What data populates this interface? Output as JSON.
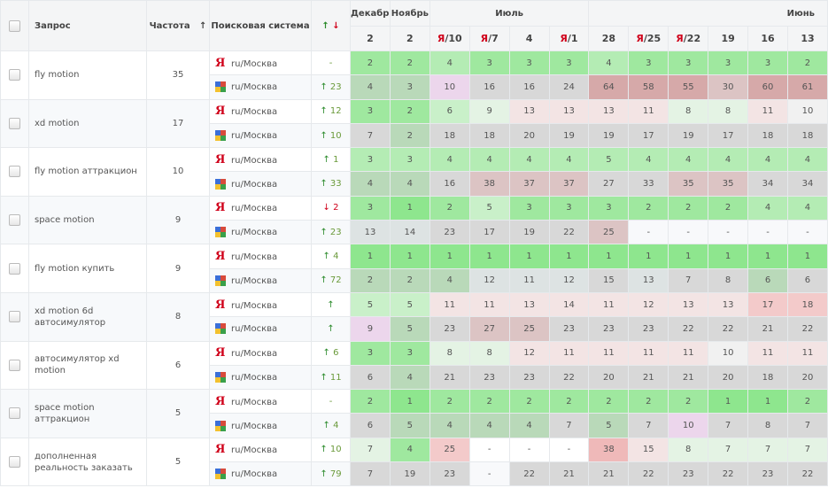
{
  "header": {
    "query": "Запрос",
    "frequency": "Частота",
    "sort_arrow": "↑",
    "engine": "Поисковая система",
    "delta_up": "↑",
    "delta_down": "↓",
    "months": [
      {
        "label": "Декабрь",
        "span": 1
      },
      {
        "label": "Ноябрь",
        "span": 1
      },
      {
        "label": "Июль",
        "span": 4
      },
      {
        "label": "Июнь",
        "span": 6
      }
    ],
    "dates": [
      {
        "ya": "",
        "d": "2"
      },
      {
        "ya": "",
        "d": "2"
      },
      {
        "ya": "Я",
        "d": "/10"
      },
      {
        "ya": "Я",
        "d": "/7"
      },
      {
        "ya": "",
        "d": "4"
      },
      {
        "ya": "Я",
        "d": "/1"
      },
      {
        "ya": "",
        "d": "28"
      },
      {
        "ya": "Я",
        "d": "/25"
      },
      {
        "ya": "Я",
        "d": "/22"
      },
      {
        "ya": "",
        "d": "19"
      },
      {
        "ya": "",
        "d": "16"
      },
      {
        "ya": "",
        "d": "13"
      }
    ]
  },
  "colors": {
    "G3": "#8ee68e",
    "G": "#9fe89f",
    "g": "#b4ecb4",
    "l": "#c9f0c9",
    "lw": "#e4f3e4",
    "gg": "#b9d9b9",
    "gr": "#d8d8d8",
    "gb": "#dde3e3",
    "p": "#dcc4c4",
    "r": "#d6a9a9",
    "r2": "#efb9b9",
    "lr": "#f3caca",
    "lp": "#f3e4e4",
    "v": "#ecd6ec",
    "w": "#f1f1f1",
    "e": "#f8f9fb",
    "x": "#ffffff"
  },
  "rows": [
    {
      "query": "fly motion",
      "freq": "35",
      "engines": [
        {
          "type": "yandex",
          "region": "ru/Москва",
          "dir": "",
          "delta": "-",
          "pos": [
            "2",
            "2",
            "4",
            "3",
            "3",
            "3",
            "4",
            "3",
            "3",
            "3",
            "3",
            "2"
          ],
          "col": [
            "G",
            "G",
            "g",
            "G",
            "G",
            "G",
            "g",
            "G",
            "G",
            "G",
            "G",
            "G"
          ]
        },
        {
          "type": "google",
          "region": "ru/Москва",
          "dir": "↑",
          "delta": "23",
          "pos": [
            "4",
            "3",
            "10",
            "16",
            "16",
            "24",
            "64",
            "58",
            "55",
            "30",
            "60",
            "61"
          ],
          "col": [
            "gg",
            "gg",
            "v",
            "gr",
            "gr",
            "gr",
            "r",
            "r",
            "r",
            "p",
            "r",
            "r"
          ]
        }
      ]
    },
    {
      "query": "xd motion",
      "freq": "17",
      "engines": [
        {
          "type": "yandex",
          "region": "ru/Москва",
          "dir": "↑",
          "delta": "12",
          "pos": [
            "3",
            "2",
            "6",
            "9",
            "13",
            "13",
            "13",
            "11",
            "8",
            "8",
            "11",
            "10"
          ],
          "col": [
            "G",
            "G",
            "l",
            "lw",
            "lp",
            "lp",
            "lp",
            "lp",
            "lw",
            "lw",
            "lp",
            "w"
          ]
        },
        {
          "type": "google",
          "region": "ru/Москва",
          "dir": "↑",
          "delta": "10",
          "pos": [
            "7",
            "2",
            "18",
            "18",
            "20",
            "19",
            "19",
            "17",
            "19",
            "17",
            "18",
            "18"
          ],
          "col": [
            "gr",
            "gg",
            "gr",
            "gr",
            "gr",
            "gr",
            "gr",
            "gr",
            "gr",
            "gr",
            "gr",
            "gr"
          ]
        }
      ]
    },
    {
      "query": "fly motion аттракцион",
      "freq": "10",
      "engines": [
        {
          "type": "yandex",
          "region": "ru/Москва",
          "dir": "↑",
          "delta": "1",
          "pos": [
            "3",
            "3",
            "4",
            "4",
            "4",
            "4",
            "5",
            "4",
            "4",
            "4",
            "4",
            "4"
          ],
          "col": [
            "g",
            "g",
            "g",
            "g",
            "g",
            "g",
            "g",
            "g",
            "g",
            "g",
            "g",
            "g"
          ]
        },
        {
          "type": "google",
          "region": "ru/Москва",
          "dir": "↑",
          "delta": "33",
          "pos": [
            "4",
            "4",
            "16",
            "38",
            "37",
            "37",
            "27",
            "33",
            "35",
            "35",
            "34",
            "34"
          ],
          "col": [
            "gg",
            "gg",
            "gr",
            "p",
            "p",
            "p",
            "gr",
            "gr",
            "p",
            "p",
            "gr",
            "gr"
          ]
        }
      ]
    },
    {
      "query": "space motion",
      "freq": "9",
      "engines": [
        {
          "type": "yandex",
          "region": "ru/Москва",
          "dir": "↓",
          "delta": "2",
          "pos": [
            "3",
            "1",
            "2",
            "5",
            "3",
            "3",
            "3",
            "2",
            "2",
            "2",
            "4",
            "4"
          ],
          "col": [
            "G",
            "G3",
            "G",
            "l",
            "G",
            "G",
            "G",
            "G",
            "G",
            "G",
            "g",
            "g"
          ]
        },
        {
          "type": "google",
          "region": "ru/Москва",
          "dir": "↑",
          "delta": "23",
          "pos": [
            "13",
            "14",
            "23",
            "17",
            "19",
            "22",
            "25",
            "-",
            "-",
            "-",
            "-",
            "-"
          ],
          "col": [
            "gb",
            "gb",
            "gr",
            "gr",
            "gr",
            "gr",
            "p",
            "e",
            "e",
            "e",
            "e",
            "e"
          ]
        }
      ]
    },
    {
      "query": "fly motion купить",
      "freq": "9",
      "engines": [
        {
          "type": "yandex",
          "region": "ru/Москва",
          "dir": "↑",
          "delta": "4",
          "pos": [
            "1",
            "1",
            "1",
            "1",
            "1",
            "1",
            "1",
            "1",
            "1",
            "1",
            "1",
            "1"
          ],
          "col": [
            "G3",
            "G3",
            "G3",
            "G3",
            "G3",
            "G3",
            "G3",
            "G3",
            "G3",
            "G3",
            "G3",
            "G3"
          ]
        },
        {
          "type": "google",
          "region": "ru/Москва",
          "dir": "↑",
          "delta": "72",
          "pos": [
            "2",
            "2",
            "4",
            "12",
            "11",
            "12",
            "15",
            "13",
            "7",
            "8",
            "6",
            "6"
          ],
          "col": [
            "gg",
            "gg",
            "gg",
            "gb",
            "gb",
            "gb",
            "gr",
            "gb",
            "gr",
            "gr",
            "gg",
            "gr"
          ]
        }
      ]
    },
    {
      "query": "xd motion 6d автосимулятор",
      "freq": "8",
      "engines": [
        {
          "type": "yandex",
          "region": "ru/Москва",
          "dir": "↑",
          "delta": "",
          "pos": [
            "5",
            "5",
            "11",
            "11",
            "13",
            "14",
            "11",
            "12",
            "13",
            "13",
            "17",
            "18"
          ],
          "col": [
            "l",
            "l",
            "lp",
            "lp",
            "lp",
            "lp",
            "lp",
            "lp",
            "lp",
            "lp",
            "lr",
            "lr"
          ]
        },
        {
          "type": "google",
          "region": "ru/Москва",
          "dir": "↑",
          "delta": "",
          "pos": [
            "9",
            "5",
            "23",
            "27",
            "25",
            "23",
            "23",
            "23",
            "22",
            "22",
            "21",
            "22"
          ],
          "col": [
            "v",
            "gg",
            "gr",
            "p",
            "p",
            "gr",
            "gr",
            "gr",
            "gr",
            "gr",
            "gr",
            "gr"
          ]
        }
      ]
    },
    {
      "query": "автосимулятор xd motion",
      "freq": "6",
      "engines": [
        {
          "type": "yandex",
          "region": "ru/Москва",
          "dir": "↑",
          "delta": "6",
          "pos": [
            "3",
            "3",
            "8",
            "8",
            "12",
            "11",
            "11",
            "11",
            "11",
            "10",
            "11",
            "11"
          ],
          "col": [
            "G",
            "G",
            "lw",
            "lw",
            "lp",
            "lp",
            "lp",
            "lp",
            "lp",
            "w",
            "lp",
            "lp"
          ]
        },
        {
          "type": "google",
          "region": "ru/Москва",
          "dir": "↑",
          "delta": "11",
          "pos": [
            "6",
            "4",
            "21",
            "23",
            "23",
            "22",
            "20",
            "21",
            "21",
            "20",
            "18",
            "20"
          ],
          "col": [
            "gr",
            "gg",
            "gr",
            "gr",
            "gr",
            "gr",
            "gr",
            "gr",
            "gr",
            "gr",
            "gr",
            "gr"
          ]
        }
      ]
    },
    {
      "query": "space motion аттракцион",
      "freq": "5",
      "engines": [
        {
          "type": "yandex",
          "region": "ru/Москва",
          "dir": "",
          "delta": "-",
          "pos": [
            "2",
            "1",
            "2",
            "2",
            "2",
            "2",
            "2",
            "2",
            "2",
            "1",
            "1",
            "2"
          ],
          "col": [
            "G",
            "G3",
            "G",
            "G",
            "G",
            "G",
            "G",
            "G",
            "G",
            "G3",
            "G3",
            "G"
          ]
        },
        {
          "type": "google",
          "region": "ru/Москва",
          "dir": "↑",
          "delta": "4",
          "pos": [
            "6",
            "5",
            "4",
            "4",
            "4",
            "7",
            "5",
            "7",
            "10",
            "7",
            "8",
            "7"
          ],
          "col": [
            "gr",
            "gg",
            "gg",
            "gg",
            "gg",
            "gr",
            "gg",
            "gr",
            "v",
            "gr",
            "gr",
            "gr"
          ]
        }
      ]
    },
    {
      "query": "дополненная реальность заказать",
      "freq": "5",
      "engines": [
        {
          "type": "yandex",
          "region": "ru/Москва",
          "dir": "↑",
          "delta": "10",
          "pos": [
            "7",
            "4",
            "25",
            "-",
            "-",
            "-",
            "38",
            "15",
            "8",
            "7",
            "7",
            "7"
          ],
          "col": [
            "lw",
            "G",
            "lr",
            "x",
            "x",
            "x",
            "r2",
            "lp",
            "lw",
            "lw",
            "lw",
            "lw"
          ]
        },
        {
          "type": "google",
          "region": "ru/Москва",
          "dir": "↑",
          "delta": "79",
          "pos": [
            "7",
            "19",
            "23",
            "-",
            "22",
            "21",
            "21",
            "22",
            "23",
            "22",
            "23",
            "22"
          ],
          "col": [
            "gr",
            "gr",
            "gr",
            "e",
            "gr",
            "gr",
            "gr",
            "gr",
            "gr",
            "gr",
            "gr",
            "gr"
          ]
        }
      ]
    }
  ]
}
